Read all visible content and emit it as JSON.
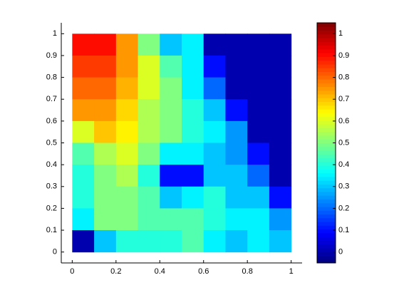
{
  "chart_data": {
    "type": "heatmap",
    "colormap": "jet",
    "x": [
      0.05,
      0.15,
      0.25,
      0.35,
      0.45,
      0.55,
      0.65,
      0.75,
      0.85,
      0.95
    ],
    "y": [
      0.95,
      0.85,
      0.75,
      0.65,
      0.55,
      0.45,
      0.35,
      0.25,
      0.15,
      0.05
    ],
    "z": [
      [
        0.9,
        0.9,
        0.75,
        0.5,
        0.3,
        0.35,
        0,
        0,
        0,
        0
      ],
      [
        0.85,
        0.85,
        0.75,
        0.6,
        0.45,
        0.35,
        0.1,
        0,
        0,
        0
      ],
      [
        0.8,
        0.8,
        0.72,
        0.6,
        0.5,
        0.35,
        0.2,
        0,
        0,
        0
      ],
      [
        0.75,
        0.75,
        0.68,
        0.55,
        0.5,
        0.4,
        0.3,
        0.1,
        0,
        0
      ],
      [
        0.6,
        0.7,
        0.65,
        0.55,
        0.5,
        0.4,
        0.35,
        0.25,
        0,
        0
      ],
      [
        0.45,
        0.55,
        0.6,
        0.5,
        0.35,
        0.35,
        0.3,
        0.25,
        0.1,
        0
      ],
      [
        0.4,
        0.5,
        0.55,
        0.4,
        0.1,
        0.1,
        0.3,
        0.3,
        0.2,
        0
      ],
      [
        0.4,
        0.5,
        0.5,
        0.45,
        0.3,
        0.35,
        0.4,
        0.3,
        0.3,
        0.1
      ],
      [
        0.35,
        0.5,
        0.5,
        0.45,
        0.45,
        0.45,
        0.4,
        0.35,
        0.35,
        0.25
      ],
      [
        0,
        0.3,
        0.4,
        0.4,
        0.4,
        0.45,
        0.35,
        0.3,
        0.35,
        0.3
      ]
    ],
    "cell": 0.1,
    "xlim": [
      -0.05,
      1.05
    ],
    "ylim": [
      -0.05,
      1.05
    ],
    "xticks": [
      0,
      0.2,
      0.4,
      0.6,
      0.8,
      1
    ],
    "yticks": [
      0,
      0.1,
      0.2,
      0.3,
      0.4,
      0.5,
      0.6,
      0.7,
      0.8,
      0.9,
      1
    ],
    "clim": [
      -0.05,
      1.05
    ],
    "cticks": [
      0,
      0.1,
      0.2,
      0.3,
      0.4,
      0.5,
      0.6,
      0.7,
      0.8,
      0.9,
      1
    ]
  }
}
